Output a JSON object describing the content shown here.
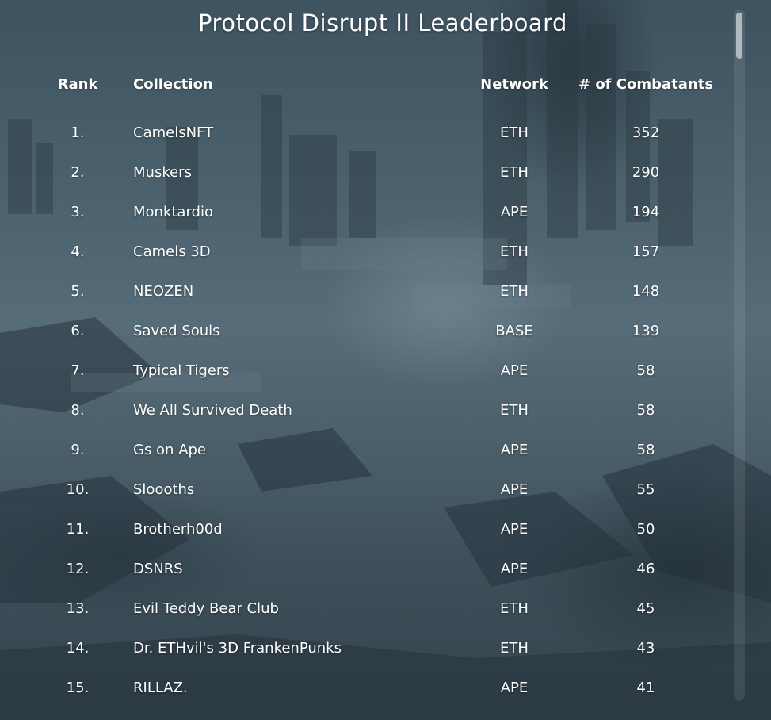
{
  "title": "Protocol Disrupt II Leaderboard",
  "columns": {
    "rank": "Rank",
    "collection": "Collection",
    "network": "Network",
    "combatants": "# of Combatants"
  },
  "rows": [
    {
      "rank": "1.",
      "collection": "CamelsNFT",
      "network": "ETH",
      "combatants": "352"
    },
    {
      "rank": "2.",
      "collection": "Muskers",
      "network": "ETH",
      "combatants": "290"
    },
    {
      "rank": "3.",
      "collection": "Monktardio",
      "network": "APE",
      "combatants": "194"
    },
    {
      "rank": "4.",
      "collection": "Camels 3D",
      "network": "ETH",
      "combatants": "157"
    },
    {
      "rank": "5.",
      "collection": "NEOZEN",
      "network": "ETH",
      "combatants": "148"
    },
    {
      "rank": "6.",
      "collection": "Saved Souls",
      "network": "BASE",
      "combatants": "139"
    },
    {
      "rank": "7.",
      "collection": "Typical Tigers",
      "network": "APE",
      "combatants": "58"
    },
    {
      "rank": "8.",
      "collection": "We All Survived Death",
      "network": "ETH",
      "combatants": "58"
    },
    {
      "rank": "9.",
      "collection": "Gs on Ape",
      "network": "APE",
      "combatants": "58"
    },
    {
      "rank": "10.",
      "collection": "Sloooths",
      "network": "APE",
      "combatants": "55"
    },
    {
      "rank": "11.",
      "collection": "Brotherh00d",
      "network": "APE",
      "combatants": "50"
    },
    {
      "rank": "12.",
      "collection": "DSNRS",
      "network": "APE",
      "combatants": "46"
    },
    {
      "rank": "13.",
      "collection": "Evil Teddy Bear Club",
      "network": "ETH",
      "combatants": "45"
    },
    {
      "rank": "14.",
      "collection": "Dr. ETHvil's 3D FrankenPunks",
      "network": "ETH",
      "combatants": "43"
    },
    {
      "rank": "15.",
      "collection": "RILLAZ.",
      "network": "APE",
      "combatants": "41"
    }
  ]
}
